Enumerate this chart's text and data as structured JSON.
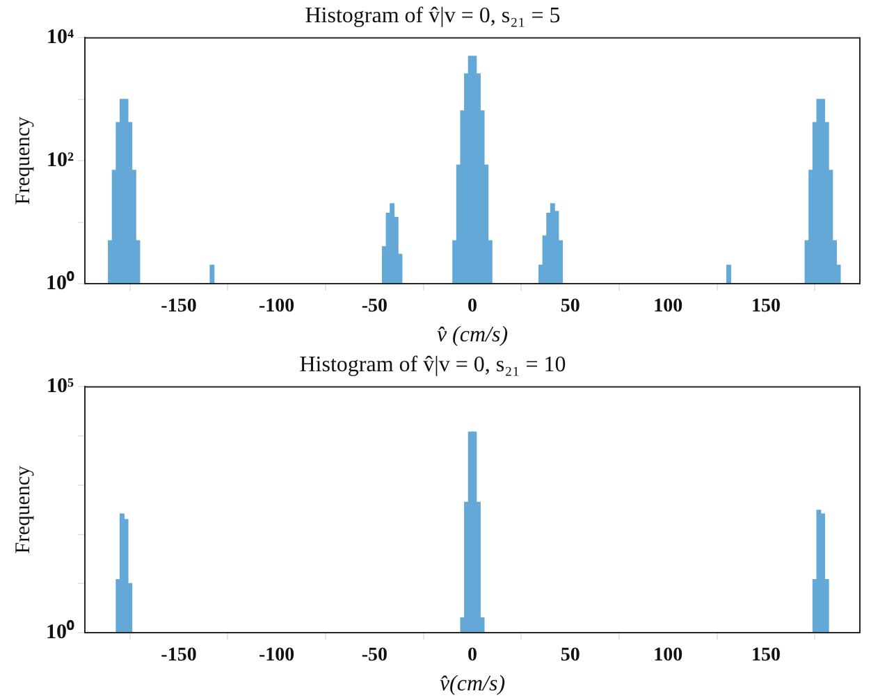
{
  "chart_data": [
    {
      "type": "histogram",
      "title": "Histogram of v̂|v = 0, s₂₁ = 5",
      "xlabel": "v̂ (cm/s)",
      "ylabel": "Frequency",
      "color": "#64a8d8",
      "log": "y",
      "xlim": [
        -198,
        198
      ],
      "xticks": [
        -150,
        -100,
        -50,
        0,
        50,
        100,
        150
      ],
      "ylim": [
        1,
        10000
      ],
      "yticks": [
        {
          "value": 1,
          "label": "10⁰"
        },
        {
          "value": 10,
          "label": null
        },
        {
          "value": 100,
          "label": "10²"
        },
        {
          "value": 1000,
          "label": null
        },
        {
          "value": 10000,
          "label": "10⁴"
        }
      ],
      "bins": [
        -186,
        -184,
        -182,
        -180,
        -178,
        -176,
        -174,
        -172,
        -170,
        -134,
        -132,
        -48,
        -46,
        -44,
        -42,
        -40,
        -38,
        -36,
        -12,
        -10,
        -8,
        -6,
        -4,
        -2,
        0,
        2,
        4,
        6,
        8,
        10,
        34,
        36,
        38,
        40,
        42,
        44,
        46,
        48,
        130,
        132,
        170,
        172,
        174,
        176,
        178,
        180,
        182,
        184,
        186,
        188,
        190,
        192,
        194
      ],
      "values": [
        5,
        70,
        420,
        1000,
        1000,
        420,
        70,
        5,
        null,
        2,
        null,
        1,
        4,
        14,
        20,
        12,
        3,
        null,
        1,
        5,
        85,
        650,
        2600,
        5000,
        5000,
        2600,
        650,
        85,
        5,
        null,
        2,
        6,
        14,
        20,
        15,
        5,
        1,
        null,
        2,
        null,
        5,
        70,
        420,
        1000,
        1000,
        420,
        70,
        5,
        2,
        1,
        null,
        1
      ]
    },
    {
      "type": "histogram",
      "title": "Histogram of v̂|v = 0, s₂₁ = 10",
      "xlabel": "v̂(cm/s)",
      "ylabel": "Frequency",
      "color": "#64a8d8",
      "log": "y",
      "xlim": [
        -198,
        198
      ],
      "xticks": [
        -150,
        -100,
        -50,
        0,
        50,
        100,
        150
      ],
      "ylim": [
        1,
        100000
      ],
      "yticks": [
        {
          "value": 1,
          "label": "10⁰"
        },
        {
          "value": 10,
          "label": null
        },
        {
          "value": 100,
          "label": null
        },
        {
          "value": 1000,
          "label": null
        },
        {
          "value": 10000,
          "label": null
        },
        {
          "value": 100000,
          "label": "10⁵"
        }
      ],
      "bins": [
        -182,
        -180,
        -178,
        -176,
        -174,
        -6,
        -4,
        -2,
        0,
        2,
        4,
        6,
        174,
        176,
        178,
        180,
        182
      ],
      "values": [
        12,
        260,
        200,
        10,
        null,
        2,
        450,
        12000,
        12000,
        450,
        2,
        null,
        12,
        310,
        260,
        12
      ]
    }
  ]
}
